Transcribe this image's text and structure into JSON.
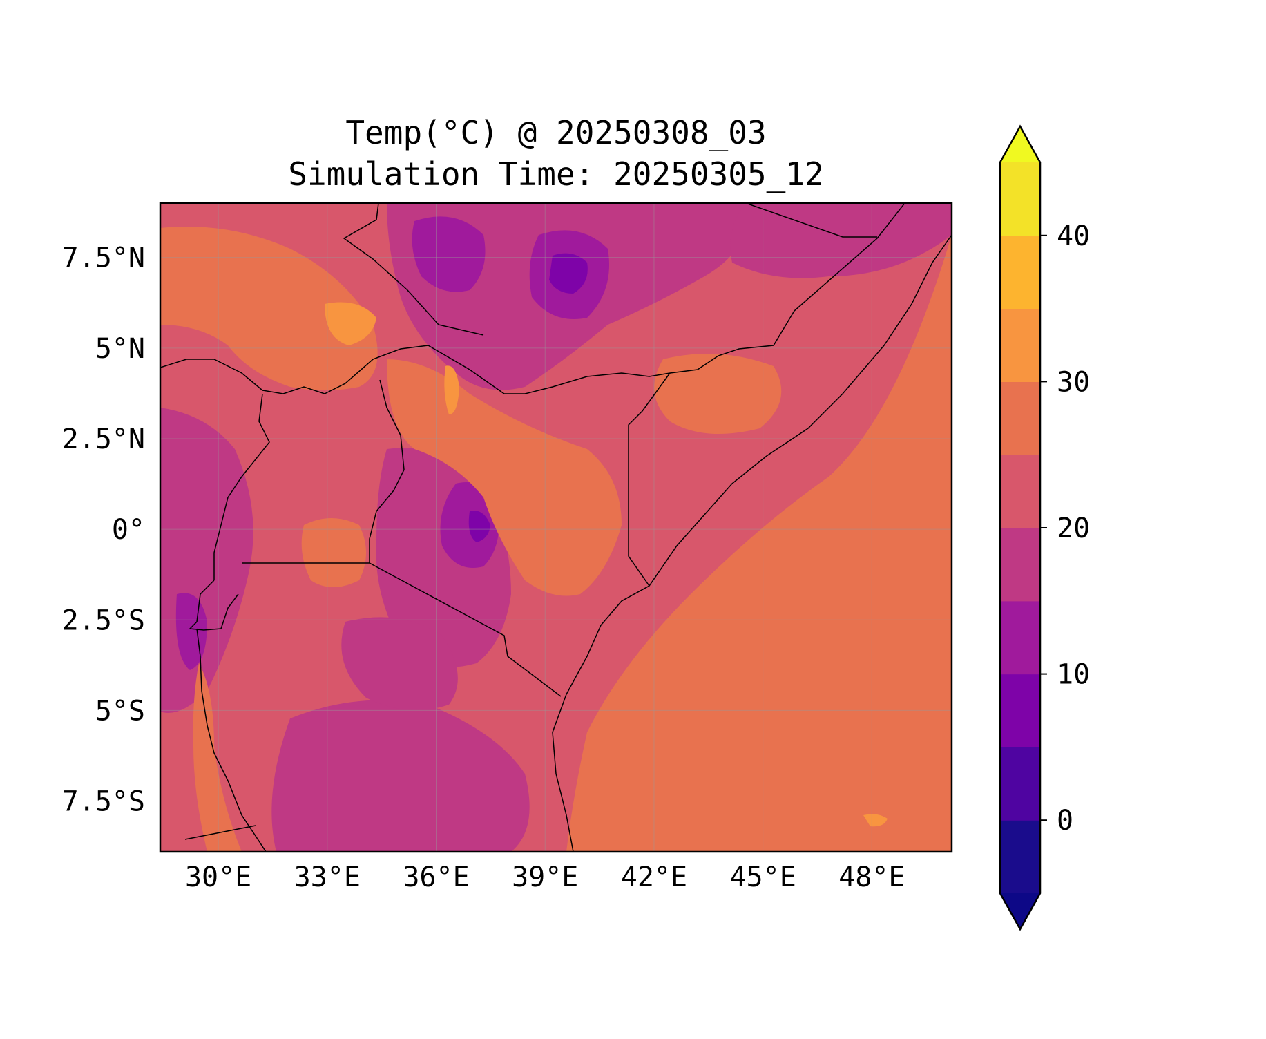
{
  "map": {
    "title_line1": "Temp(°C) @ 20250308_03",
    "title_line2": "Simulation Time: 20250305_12",
    "variable": "Temp(°C)",
    "valid_time": "20250308_03",
    "simulation_time": "20250305_12",
    "extent": {
      "lon": [
        28.4,
        50.2
      ],
      "lat": [
        -8.9,
        9.0
      ]
    },
    "lon_ticks": [
      {
        "value": 30,
        "label": "30°E"
      },
      {
        "value": 33,
        "label": "33°E"
      },
      {
        "value": 36,
        "label": "36°E"
      },
      {
        "value": 39,
        "label": "39°E"
      },
      {
        "value": 42,
        "label": "42°E"
      },
      {
        "value": 45,
        "label": "45°E"
      },
      {
        "value": 48,
        "label": "48°E"
      }
    ],
    "lat_ticks": [
      {
        "value": 7.5,
        "label": "7.5°N"
      },
      {
        "value": 5,
        "label": "5°N"
      },
      {
        "value": 2.5,
        "label": "2.5°N"
      },
      {
        "value": 0,
        "label": "0°"
      },
      {
        "value": -2.5,
        "label": "2.5°S"
      },
      {
        "value": -5,
        "label": "5°S"
      },
      {
        "value": -7.5,
        "label": "7.5°S"
      }
    ],
    "gridlines": true,
    "colormap": "plasma",
    "colorbar": {
      "placement": "right",
      "extend": "both",
      "levels": [
        -5,
        0,
        5,
        10,
        15,
        20,
        25,
        30,
        35,
        40,
        45
      ],
      "colors": [
        "#1a0c8c",
        "#4f04a1",
        "#7e03a8",
        "#a01a9c",
        "#bf3984",
        "#d8576b",
        "#e8724f",
        "#f89540",
        "#fdb42f",
        "#f3e228"
      ],
      "under_color": "#0d0887",
      "over_color": "#f0f921",
      "tick_values": [
        0,
        10,
        20,
        30,
        40
      ],
      "tick_labels": [
        "0",
        "10",
        "20",
        "30",
        "40"
      ]
    }
  }
}
